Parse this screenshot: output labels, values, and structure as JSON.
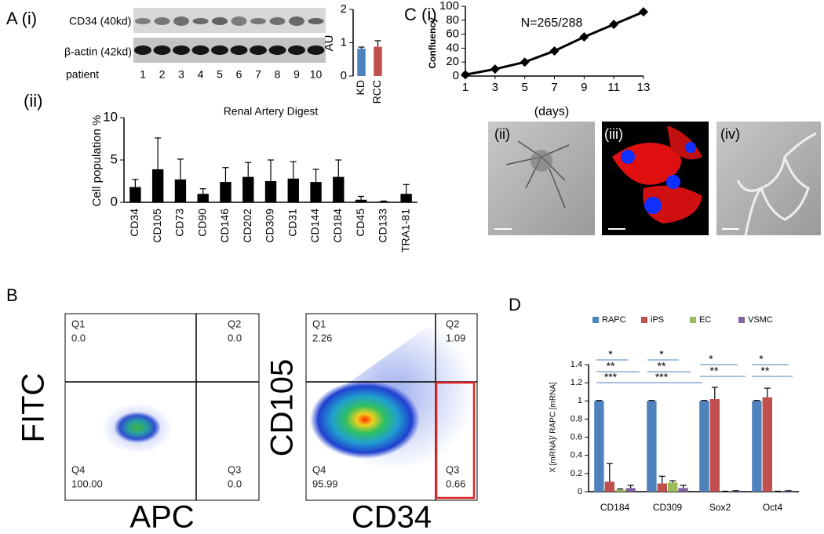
{
  "panels": {
    "a_label": "A (i)",
    "a2_label": "(ii)",
    "b_label": "B",
    "c_label": "C (i)",
    "c2_label": "(ii)",
    "c3_label": "(iii)",
    "c4_label": "(iv)",
    "d_label": "D",
    "blot": {
      "band1": "CD34 (40kd)",
      "band2": "β-actin (42kd)",
      "lane_title": "patient",
      "lanes": [
        "1",
        "2",
        "3",
        "4",
        "5",
        "6",
        "7",
        "8",
        "9",
        "10"
      ]
    },
    "flow": [
      {
        "x_label": "APC",
        "y_label": "FITC",
        "quadrants": [
          [
            "Q1",
            "0.0"
          ],
          [
            "Q2",
            "0.0"
          ],
          [
            "Q4",
            "100.00"
          ],
          [
            "Q3",
            "0.0"
          ]
        ]
      },
      {
        "x_label": "CD34",
        "y_label": "CD105",
        "quadrants": [
          [
            "Q1",
            "2.26"
          ],
          [
            "Q2",
            "1.09"
          ],
          [
            "Q4",
            "95.99"
          ],
          [
            "Q3",
            "0.66"
          ]
        ]
      }
    ]
  },
  "chart_data": [
    {
      "type": "bar",
      "y_label": "AU",
      "categories": [
        "KD",
        "RCC"
      ],
      "values": [
        0.82,
        0.88
      ],
      "errors": [
        0.05,
        0.18
      ],
      "colors": [
        "#4f81bd",
        "#c0504d"
      ],
      "ylim": [
        0,
        2
      ],
      "yticks": [
        0,
        1,
        2
      ],
      "grid": false
    },
    {
      "type": "bar",
      "title": "Renal Artery Digest",
      "y_label": "Cell population %",
      "categories": [
        "CD34",
        "CD105",
        "CD73",
        "CD90",
        "CD146",
        "CD202",
        "CD309",
        "CD31",
        "CD144",
        "CD184",
        "CD45",
        "CD133",
        "TRA1-81"
      ],
      "values": [
        1.8,
        3.9,
        2.7,
        1.0,
        2.4,
        3.0,
        2.5,
        2.8,
        2.4,
        3.0,
        0.3,
        0.1,
        1.0
      ],
      "errors": [
        0.9,
        3.7,
        2.4,
        0.6,
        1.7,
        1.7,
        2.5,
        2.0,
        1.5,
        2.0,
        0.4,
        0.05,
        1.1
      ],
      "color": "#000000",
      "ylim": [
        0,
        10
      ],
      "yticks": [
        0,
        5,
        10
      ],
      "grid": false
    },
    {
      "type": "line",
      "y_label": "Confluency",
      "x_label": "(days)",
      "annotation": "N=265/288",
      "x": [
        1,
        3,
        5,
        7,
        9,
        11,
        13
      ],
      "values": [
        2,
        10,
        20,
        36,
        56,
        74,
        92
      ],
      "color": "#000000",
      "xlim": [
        1,
        13
      ],
      "xticks": [
        1,
        3,
        5,
        7,
        9,
        11,
        13
      ],
      "ylim": [
        0,
        100
      ],
      "yticks": [
        0,
        20,
        40,
        60,
        80,
        100
      ],
      "grid": false
    },
    {
      "type": "bar",
      "y_label": "X [mRNA]/ RAPC [mRNA]",
      "categories": [
        "CD184",
        "CD309",
        "Sox2",
        "Oct4"
      ],
      "series": [
        {
          "name": "RAPC",
          "color": "#4f81bd",
          "values": [
            1,
            1,
            1,
            1
          ],
          "errors": [
            0.005,
            0.005,
            0.005,
            0.005
          ]
        },
        {
          "name": "iPS",
          "color": "#c0504d",
          "values": [
            0.11,
            0.09,
            1.02,
            1.04
          ],
          "errors": [
            0.2,
            0.08,
            0.13,
            0.1
          ]
        },
        {
          "name": "EC",
          "color": "#9bbb59",
          "values": [
            0.02,
            0.1,
            0.005,
            0.005
          ],
          "errors": [
            0.01,
            0.02,
            0,
            0
          ]
        },
        {
          "name": "VSMC",
          "color": "#8064a2",
          "values": [
            0.04,
            0.04,
            0.01,
            0.01
          ],
          "errors": [
            0.03,
            0.03,
            0,
            0
          ]
        }
      ],
      "annotations": [
        "*",
        "**",
        "***",
        "*",
        "**",
        "***",
        "*",
        "**",
        "*",
        "**"
      ],
      "ylim": [
        0,
        1.4
      ],
      "yticks": [
        0,
        0.2,
        0.4,
        0.6,
        0.8,
        1,
        1.2,
        1.4
      ],
      "grid": false,
      "legend": "top"
    }
  ]
}
